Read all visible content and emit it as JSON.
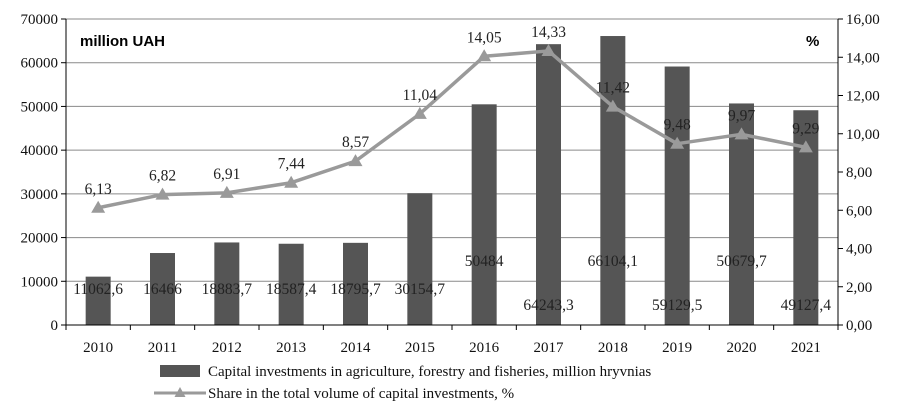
{
  "chart_data": {
    "type": "bar+line",
    "categories": [
      "2010",
      "2011",
      "2012",
      "2013",
      "2014",
      "2015",
      "2016",
      "2017",
      "2018",
      "2019",
      "2020",
      "2021"
    ],
    "series": [
      {
        "name": "Capital investments in agriculture, forestry and fisheries, million hryvnias",
        "type": "bar",
        "axis": "left",
        "values": [
          11062.6,
          16466,
          18883.7,
          18587.4,
          18795.7,
          30154.7,
          50484,
          64243.3,
          66104.1,
          59129.5,
          50679.7,
          49127.4
        ],
        "labels": [
          "11062,6",
          "16466",
          "18883,7",
          "18587,4",
          "18795,7",
          "30154,7",
          "50484",
          "64243,3",
          "66104,1",
          "59129,5",
          "50679,7",
          "49127,4"
        ],
        "color": "#555555"
      },
      {
        "name": "Share in the total volume of capital investments, %",
        "type": "line",
        "axis": "right",
        "values": [
          6.13,
          6.82,
          6.91,
          7.44,
          8.57,
          11.04,
          14.05,
          14.33,
          11.42,
          9.48,
          9.97,
          9.29
        ],
        "labels": [
          "6,13",
          "6,82",
          "6,91",
          "7,44",
          "8,57",
          "11,04",
          "14,05",
          "14,33",
          "11,42",
          "9,48",
          "9,97",
          "9,29"
        ],
        "color": "#9a9a9a",
        "marker": "triangle"
      }
    ],
    "left_axis": {
      "unit_label": "million  UAH",
      "ylim": [
        0,
        70000
      ],
      "ticks": [
        "0",
        "10000",
        "20000",
        "30000",
        "40000",
        "50000",
        "60000",
        "70000"
      ]
    },
    "right_axis": {
      "unit_label": "%",
      "ylim": [
        0,
        16
      ],
      "ticks": [
        "0,00",
        "2,00",
        "4,00",
        "6,00",
        "8,00",
        "10,00",
        "12,00",
        "14,00",
        "16,00"
      ]
    },
    "grid": "horizontal",
    "legend_position": "bottom"
  }
}
